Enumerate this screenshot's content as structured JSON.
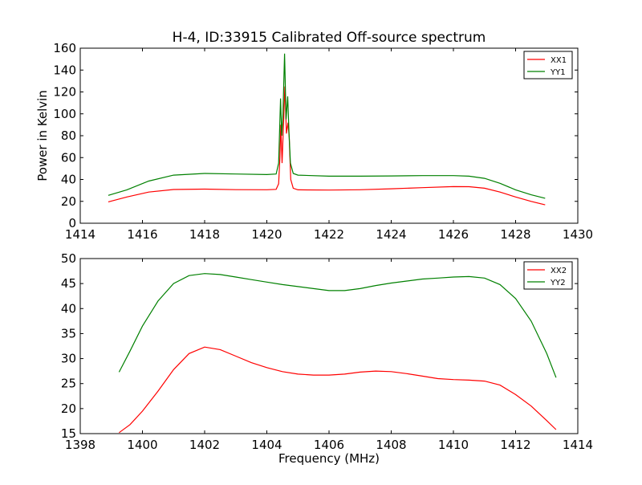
{
  "chart_data": [
    {
      "type": "line",
      "title": "H-4, ID:33915 Calibrated Off-source spectrum",
      "xlabel": "",
      "ylabel": "Power in Kelvin",
      "xlim": [
        1414,
        1430
      ],
      "ylim": [
        0,
        160
      ],
      "xticks": [
        "1414",
        "1416",
        "1418",
        "1420",
        "1422",
        "1424",
        "1426",
        "1428",
        "1430"
      ],
      "yticks": [
        "0",
        "20",
        "40",
        "60",
        "80",
        "100",
        "120",
        "140",
        "160"
      ],
      "legend_position": "top-right",
      "grid": false,
      "series": [
        {
          "name": "XX1",
          "color": "#ff0000",
          "points": [
            [
              1414.9,
              19.5
            ],
            [
              1415.5,
              24.0
            ],
            [
              1416.2,
              28.5
            ],
            [
              1417.0,
              30.8
            ],
            [
              1418.0,
              31.2
            ],
            [
              1419.0,
              30.7
            ],
            [
              1420.0,
              30.6
            ],
            [
              1420.3,
              31.0
            ],
            [
              1420.38,
              36.0
            ],
            [
              1420.42,
              60.0
            ],
            [
              1420.45,
              90.0
            ],
            [
              1420.49,
              55.0
            ],
            [
              1420.53,
              85.0
            ],
            [
              1420.58,
              125.0
            ],
            [
              1420.63,
              82.0
            ],
            [
              1420.68,
              92.0
            ],
            [
              1420.72,
              78.0
            ],
            [
              1420.77,
              40.0
            ],
            [
              1420.85,
              32.0
            ],
            [
              1421.0,
              30.5
            ],
            [
              1422.0,
              30.3
            ],
            [
              1423.0,
              30.6
            ],
            [
              1424.0,
              31.5
            ],
            [
              1425.0,
              32.5
            ],
            [
              1426.0,
              33.5
            ],
            [
              1426.5,
              33.4
            ],
            [
              1427.0,
              32.0
            ],
            [
              1427.5,
              28.5
            ],
            [
              1428.0,
              24.0
            ],
            [
              1428.5,
              20.0
            ],
            [
              1428.95,
              16.8
            ]
          ]
        },
        {
          "name": "YY1",
          "color": "#008000",
          "points": [
            [
              1414.9,
              25.5
            ],
            [
              1415.5,
              30.5
            ],
            [
              1416.2,
              38.5
            ],
            [
              1417.0,
              44.0
            ],
            [
              1418.0,
              45.5
            ],
            [
              1419.0,
              45.0
            ],
            [
              1420.0,
              44.5
            ],
            [
              1420.3,
              45.0
            ],
            [
              1420.38,
              55.0
            ],
            [
              1420.44,
              114.0
            ],
            [
              1420.48,
              80.0
            ],
            [
              1420.52,
              100.0
            ],
            [
              1420.57,
              155.0
            ],
            [
              1420.62,
              95.0
            ],
            [
              1420.67,
              116.0
            ],
            [
              1420.71,
              85.0
            ],
            [
              1420.76,
              55.0
            ],
            [
              1420.85,
              45.5
            ],
            [
              1421.0,
              44.0
            ],
            [
              1422.0,
              43.0
            ],
            [
              1423.0,
              43.0
            ],
            [
              1424.0,
              43.2
            ],
            [
              1425.0,
              43.5
            ],
            [
              1426.0,
              43.5
            ],
            [
              1426.5,
              43.0
            ],
            [
              1427.0,
              41.0
            ],
            [
              1427.5,
              36.5
            ],
            [
              1428.0,
              30.5
            ],
            [
              1428.5,
              26.0
            ],
            [
              1428.95,
              22.8
            ]
          ]
        }
      ]
    },
    {
      "type": "line",
      "title": "",
      "xlabel": "Frequency (MHz)",
      "ylabel": "",
      "xlim": [
        1398,
        1414
      ],
      "ylim": [
        15,
        50
      ],
      "xticks": [
        "1398",
        "1400",
        "1402",
        "1404",
        "1406",
        "1408",
        "1410",
        "1412",
        "1414"
      ],
      "yticks": [
        "15",
        "20",
        "25",
        "30",
        "35",
        "40",
        "45",
        "50"
      ],
      "legend_position": "top-right",
      "grid": false,
      "series": [
        {
          "name": "XX2",
          "color": "#ff0000",
          "points": [
            [
              1399.25,
              15.2
            ],
            [
              1399.6,
              16.8
            ],
            [
              1400.0,
              19.5
            ],
            [
              1400.5,
              23.5
            ],
            [
              1401.0,
              27.8
            ],
            [
              1401.5,
              31.0
            ],
            [
              1402.0,
              32.3
            ],
            [
              1402.5,
              31.8
            ],
            [
              1403.0,
              30.5
            ],
            [
              1403.5,
              29.2
            ],
            [
              1404.0,
              28.2
            ],
            [
              1404.5,
              27.4
            ],
            [
              1405.0,
              26.9
            ],
            [
              1405.5,
              26.7
            ],
            [
              1406.0,
              26.7
            ],
            [
              1406.5,
              26.9
            ],
            [
              1407.0,
              27.3
            ],
            [
              1407.5,
              27.5
            ],
            [
              1408.0,
              27.4
            ],
            [
              1408.5,
              27.0
            ],
            [
              1409.0,
              26.5
            ],
            [
              1409.5,
              26.0
            ],
            [
              1410.0,
              25.8
            ],
            [
              1410.5,
              25.7
            ],
            [
              1411.0,
              25.5
            ],
            [
              1411.5,
              24.7
            ],
            [
              1412.0,
              22.8
            ],
            [
              1412.5,
              20.5
            ],
            [
              1413.0,
              17.6
            ],
            [
              1413.3,
              15.8
            ]
          ]
        },
        {
          "name": "YY2",
          "color": "#008000",
          "points": [
            [
              1399.25,
              27.3
            ],
            [
              1399.6,
              31.5
            ],
            [
              1400.0,
              36.5
            ],
            [
              1400.5,
              41.5
            ],
            [
              1401.0,
              45.0
            ],
            [
              1401.5,
              46.6
            ],
            [
              1402.0,
              47.0
            ],
            [
              1402.5,
              46.8
            ],
            [
              1403.0,
              46.3
            ],
            [
              1403.5,
              45.8
            ],
            [
              1404.0,
              45.3
            ],
            [
              1404.5,
              44.8
            ],
            [
              1405.0,
              44.4
            ],
            [
              1405.5,
              44.0
            ],
            [
              1406.0,
              43.6
            ],
            [
              1406.5,
              43.6
            ],
            [
              1407.0,
              44.0
            ],
            [
              1407.5,
              44.6
            ],
            [
              1408.0,
              45.1
            ],
            [
              1408.5,
              45.5
            ],
            [
              1409.0,
              45.9
            ],
            [
              1409.5,
              46.1
            ],
            [
              1410.0,
              46.3
            ],
            [
              1410.5,
              46.4
            ],
            [
              1411.0,
              46.1
            ],
            [
              1411.5,
              44.8
            ],
            [
              1412.0,
              42.0
            ],
            [
              1412.5,
              37.5
            ],
            [
              1413.0,
              31.0
            ],
            [
              1413.3,
              26.2
            ]
          ]
        }
      ]
    }
  ]
}
